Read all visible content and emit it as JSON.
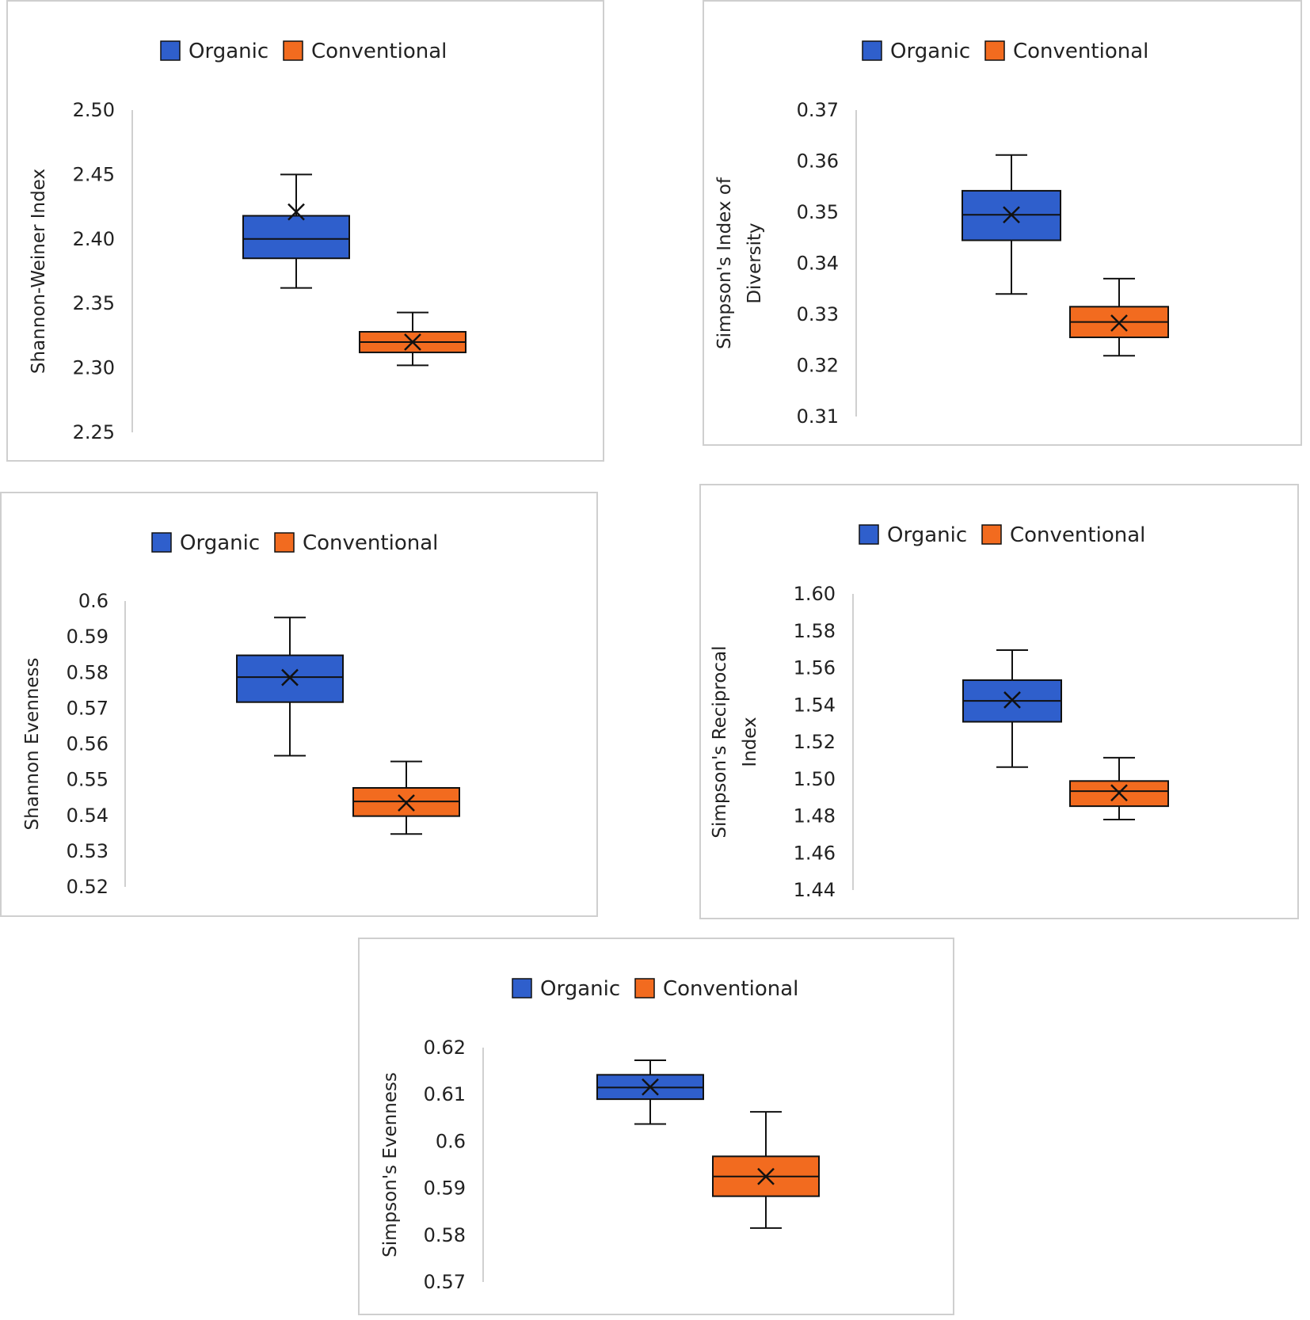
{
  "colors": {
    "organic": "#2f5fcc",
    "conventional": "#f26b1f",
    "stroke": "#111111",
    "axis": "#d0d0d0"
  },
  "legend": {
    "organic": "Organic",
    "conventional": "Conventional"
  },
  "chart_data": [
    {
      "type": "boxplot",
      "ylabel": [
        "Shannon-Weiner Index"
      ],
      "yticks": [
        "2.50",
        "2.45",
        "2.40",
        "2.35",
        "2.30",
        "2.25"
      ],
      "ylim": [
        2.25,
        2.5
      ],
      "legend_position": "top",
      "grid": false,
      "series": [
        {
          "name": "Organic",
          "min": 2.362,
          "q1": 2.385,
          "median": 2.4,
          "q3": 2.418,
          "max": 2.45,
          "mean": 2.421
        },
        {
          "name": "Conventional",
          "min": 2.302,
          "q1": 2.312,
          "median": 2.32,
          "q3": 2.328,
          "max": 2.343,
          "mean": 2.32
        }
      ]
    },
    {
      "type": "boxplot",
      "ylabel": [
        "Simpson's Index of",
        "Diversity"
      ],
      "yticks": [
        "0.37",
        "0.36",
        "0.35",
        "0.34",
        "0.33",
        "0.32",
        "0.31"
      ],
      "ylim": [
        0.31,
        0.37
      ],
      "legend_position": "top",
      "grid": false,
      "series": [
        {
          "name": "Organic",
          "min": 0.334,
          "q1": 0.3445,
          "median": 0.3495,
          "q3": 0.3542,
          "max": 0.3612,
          "mean": 0.3495
        },
        {
          "name": "Conventional",
          "min": 0.3219,
          "q1": 0.3255,
          "median": 0.3285,
          "q3": 0.3315,
          "max": 0.337,
          "mean": 0.3283
        }
      ]
    },
    {
      "type": "boxplot",
      "ylabel": [
        "Shannon Evenness"
      ],
      "yticks": [
        "0.6",
        "0.59",
        "0.58",
        "0.57",
        "0.56",
        "0.55",
        "0.54",
        "0.53",
        "0.52"
      ],
      "ylim": [
        0.52,
        0.6
      ],
      "legend_position": "top",
      "grid": false,
      "series": [
        {
          "name": "Organic",
          "min": 0.5567,
          "q1": 0.5717,
          "median": 0.5787,
          "q3": 0.5848,
          "max": 0.5954,
          "mean": 0.5786
        },
        {
          "name": "Conventional",
          "min": 0.5348,
          "q1": 0.5398,
          "median": 0.5439,
          "q3": 0.5477,
          "max": 0.5551,
          "mean": 0.5435
        }
      ]
    },
    {
      "type": "boxplot",
      "ylabel": [
        "Simpson's Reciprocal",
        "Index"
      ],
      "yticks": [
        "1.60",
        "1.58",
        "1.56",
        "1.54",
        "1.52",
        "1.50",
        "1.48",
        "1.46",
        "1.44"
      ],
      "ylim": [
        1.44,
        1.6
      ],
      "legend_position": "top",
      "grid": false,
      "series": [
        {
          "name": "Organic",
          "min": 1.5064,
          "q1": 1.5309,
          "median": 1.5422,
          "q3": 1.5534,
          "max": 1.5696,
          "mean": 1.5427
        },
        {
          "name": "Conventional",
          "min": 1.4781,
          "q1": 1.4853,
          "median": 1.4934,
          "q3": 1.4989,
          "max": 1.5115,
          "mean": 1.4925
        }
      ]
    },
    {
      "type": "boxplot",
      "ylabel": [
        "Simpson's Evenness"
      ],
      "yticks": [
        "0.62",
        "0.61",
        "0.6",
        "0.59",
        "0.58",
        "0.57"
      ],
      "ylim": [
        0.57,
        0.62
      ],
      "legend_position": "top",
      "grid": false,
      "series": [
        {
          "name": "Organic",
          "min": 0.6037,
          "q1": 0.609,
          "median": 0.6115,
          "q3": 0.6142,
          "max": 0.6173,
          "mean": 0.6116
        },
        {
          "name": "Conventional",
          "min": 0.5815,
          "q1": 0.5883,
          "median": 0.5925,
          "q3": 0.5968,
          "max": 0.6063,
          "mean": 0.5925
        }
      ]
    }
  ]
}
